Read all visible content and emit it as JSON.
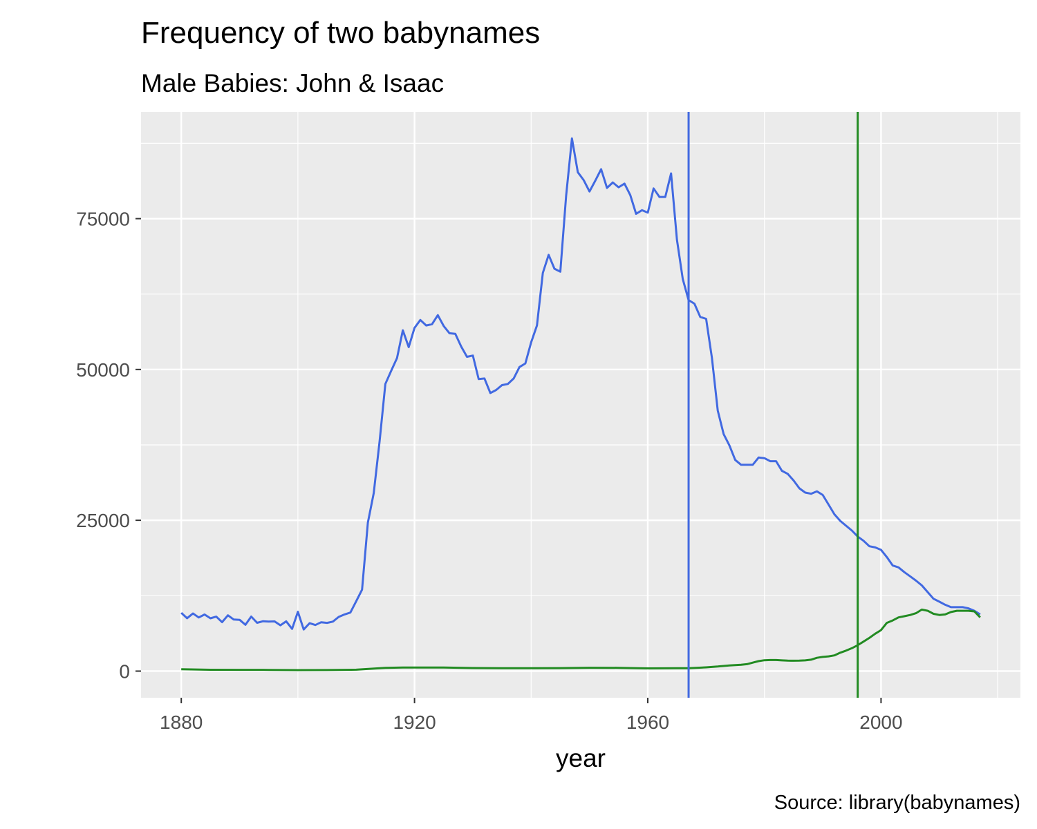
{
  "chart_data": {
    "type": "line",
    "title": "Frequency of two babynames",
    "subtitle": "Male Babies:  John & Isaac",
    "xlabel": "year",
    "ylabel": "",
    "caption": "Source:  library(babynames)",
    "xlim": [
      1873.1,
      2023.9
    ],
    "ylim": [
      -4414,
      92692
    ],
    "x_ticks": [
      1880,
      1920,
      1960,
      2000
    ],
    "y_ticks": [
      0,
      25000,
      50000,
      75000
    ],
    "grid": true,
    "legend": "none",
    "series": [
      {
        "color": "#4169e1",
        "points": [
          [
            1880,
            9655
          ],
          [
            1881,
            8769
          ],
          [
            1882,
            9557
          ],
          [
            1883,
            8894
          ],
          [
            1884,
            9388
          ],
          [
            1885,
            8756
          ],
          [
            1886,
            9026
          ],
          [
            1887,
            8110
          ],
          [
            1888,
            9247
          ],
          [
            1889,
            8548
          ],
          [
            1890,
            8502
          ],
          [
            1891,
            7679
          ],
          [
            1892,
            9040
          ],
          [
            1893,
            8015
          ],
          [
            1894,
            8257
          ],
          [
            1895,
            8213
          ],
          [
            1896,
            8240
          ],
          [
            1897,
            7593
          ],
          [
            1898,
            8252
          ],
          [
            1899,
            7002
          ],
          [
            1900,
            9828
          ],
          [
            1901,
            6900
          ],
          [
            1902,
            7940
          ],
          [
            1903,
            7640
          ],
          [
            1904,
            8100
          ],
          [
            1905,
            8000
          ],
          [
            1906,
            8200
          ],
          [
            1907,
            8980
          ],
          [
            1908,
            9400
          ],
          [
            1909,
            9700
          ],
          [
            1910,
            11600
          ],
          [
            1911,
            13500
          ],
          [
            1912,
            24600
          ],
          [
            1913,
            29500
          ],
          [
            1914,
            38000
          ],
          [
            1915,
            47600
          ],
          [
            1916,
            49800
          ],
          [
            1917,
            51900
          ],
          [
            1918,
            56500
          ],
          [
            1919,
            53700
          ],
          [
            1920,
            56900
          ],
          [
            1921,
            58200
          ],
          [
            1922,
            57300
          ],
          [
            1923,
            57500
          ],
          [
            1924,
            59000
          ],
          [
            1925,
            57200
          ],
          [
            1926,
            56000
          ],
          [
            1927,
            55900
          ],
          [
            1928,
            53800
          ],
          [
            1929,
            52100
          ],
          [
            1930,
            52300
          ],
          [
            1931,
            48400
          ],
          [
            1932,
            48500
          ],
          [
            1933,
            46100
          ],
          [
            1934,
            46600
          ],
          [
            1935,
            47400
          ],
          [
            1936,
            47600
          ],
          [
            1937,
            48500
          ],
          [
            1938,
            50400
          ],
          [
            1939,
            51000
          ],
          [
            1940,
            54500
          ],
          [
            1941,
            57300
          ],
          [
            1942,
            66000
          ],
          [
            1943,
            69000
          ],
          [
            1944,
            66700
          ],
          [
            1945,
            66200
          ],
          [
            1946,
            78800
          ],
          [
            1947,
            88300
          ],
          [
            1948,
            82700
          ],
          [
            1949,
            81400
          ],
          [
            1950,
            79500
          ],
          [
            1951,
            81300
          ],
          [
            1952,
            83200
          ],
          [
            1953,
            80100
          ],
          [
            1954,
            81000
          ],
          [
            1955,
            80200
          ],
          [
            1956,
            80800
          ],
          [
            1957,
            78900
          ],
          [
            1958,
            75800
          ],
          [
            1959,
            76400
          ],
          [
            1960,
            76000
          ],
          [
            1961,
            80000
          ],
          [
            1962,
            78600
          ],
          [
            1963,
            78600
          ],
          [
            1964,
            82500
          ],
          [
            1965,
            71500
          ],
          [
            1966,
            65000
          ],
          [
            1967,
            61500
          ],
          [
            1968,
            60900
          ],
          [
            1969,
            58700
          ],
          [
            1970,
            58400
          ],
          [
            1971,
            51900
          ],
          [
            1972,
            43200
          ],
          [
            1973,
            39300
          ],
          [
            1974,
            37400
          ],
          [
            1975,
            35000
          ],
          [
            1976,
            34200
          ],
          [
            1977,
            34200
          ],
          [
            1978,
            34200
          ],
          [
            1979,
            35400
          ],
          [
            1980,
            35300
          ],
          [
            1981,
            34800
          ],
          [
            1982,
            34800
          ],
          [
            1983,
            33200
          ],
          [
            1984,
            32700
          ],
          [
            1985,
            31600
          ],
          [
            1986,
            30300
          ],
          [
            1987,
            29600
          ],
          [
            1988,
            29400
          ],
          [
            1989,
            29800
          ],
          [
            1990,
            29200
          ],
          [
            1991,
            27600
          ],
          [
            1992,
            26000
          ],
          [
            1993,
            24900
          ],
          [
            1994,
            24100
          ],
          [
            1995,
            23300
          ],
          [
            1996,
            22300
          ],
          [
            1997,
            21600
          ],
          [
            1998,
            20700
          ],
          [
            1999,
            20500
          ],
          [
            2000,
            20100
          ],
          [
            2001,
            18900
          ],
          [
            2002,
            17500
          ],
          [
            2003,
            17200
          ],
          [
            2004,
            16400
          ],
          [
            2005,
            15700
          ],
          [
            2006,
            15000
          ],
          [
            2007,
            14200
          ],
          [
            2008,
            13100
          ],
          [
            2009,
            12000
          ],
          [
            2010,
            11500
          ],
          [
            2011,
            11000
          ],
          [
            2012,
            10600
          ],
          [
            2013,
            10600
          ],
          [
            2014,
            10600
          ],
          [
            2015,
            10400
          ],
          [
            2016,
            10000
          ],
          [
            2017,
            9400
          ]
        ]
      },
      {
        "color": "#228b22",
        "points": [
          [
            1880,
            300
          ],
          [
            1885,
            220
          ],
          [
            1890,
            210
          ],
          [
            1895,
            200
          ],
          [
            1900,
            170
          ],
          [
            1905,
            180
          ],
          [
            1910,
            230
          ],
          [
            1915,
            540
          ],
          [
            1918,
            600
          ],
          [
            1920,
            600
          ],
          [
            1925,
            590
          ],
          [
            1930,
            510
          ],
          [
            1935,
            490
          ],
          [
            1940,
            490
          ],
          [
            1945,
            500
          ],
          [
            1950,
            560
          ],
          [
            1955,
            540
          ],
          [
            1960,
            450
          ],
          [
            1965,
            470
          ],
          [
            1967,
            480
          ],
          [
            1970,
            620
          ],
          [
            1972,
            760
          ],
          [
            1974,
            940
          ],
          [
            1976,
            1060
          ],
          [
            1977,
            1150
          ],
          [
            1978,
            1400
          ],
          [
            1979,
            1650
          ],
          [
            1980,
            1800
          ],
          [
            1981,
            1840
          ],
          [
            1982,
            1840
          ],
          [
            1983,
            1780
          ],
          [
            1984,
            1740
          ],
          [
            1985,
            1720
          ],
          [
            1986,
            1740
          ],
          [
            1987,
            1780
          ],
          [
            1988,
            1900
          ],
          [
            1989,
            2200
          ],
          [
            1990,
            2350
          ],
          [
            1991,
            2440
          ],
          [
            1992,
            2600
          ],
          [
            1993,
            3050
          ],
          [
            1994,
            3400
          ],
          [
            1995,
            3800
          ],
          [
            1996,
            4300
          ],
          [
            1997,
            4900
          ],
          [
            1998,
            5500
          ],
          [
            1999,
            6200
          ],
          [
            2000,
            6800
          ],
          [
            2001,
            8000
          ],
          [
            2002,
            8400
          ],
          [
            2003,
            8900
          ],
          [
            2004,
            9100
          ],
          [
            2005,
            9300
          ],
          [
            2006,
            9600
          ],
          [
            2007,
            10200
          ],
          [
            2008,
            10000
          ],
          [
            2009,
            9500
          ],
          [
            2010,
            9300
          ],
          [
            2011,
            9400
          ],
          [
            2012,
            9800
          ],
          [
            2013,
            10000
          ],
          [
            2014,
            10000
          ],
          [
            2015,
            10000
          ],
          [
            2016,
            9900
          ],
          [
            2017,
            8900
          ]
        ]
      }
    ],
    "reference_lines": [
      {
        "x": 1967,
        "color": "#4169e1"
      },
      {
        "x": 1996,
        "color": "#228b22"
      }
    ]
  }
}
